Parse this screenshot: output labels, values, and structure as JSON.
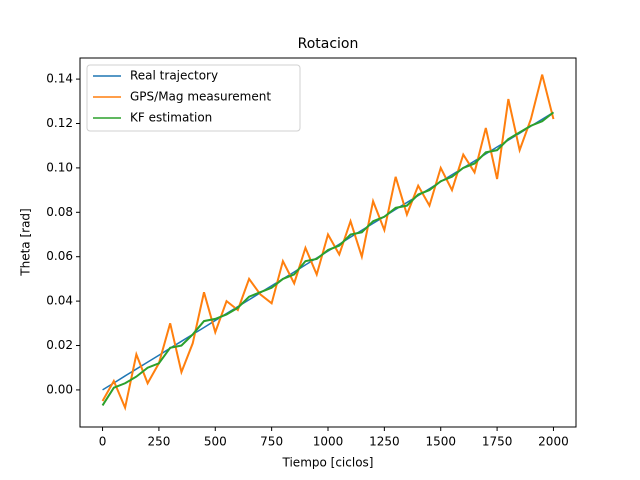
{
  "chart_data": {
    "type": "line",
    "title": "Rotacion",
    "xlabel": "Tiempo [ciclos]",
    "ylabel": "Theta [rad]",
    "x": [
      0,
      50,
      100,
      150,
      200,
      250,
      300,
      350,
      400,
      450,
      500,
      550,
      600,
      650,
      700,
      750,
      800,
      850,
      900,
      950,
      1000,
      1050,
      1100,
      1150,
      1200,
      1250,
      1300,
      1350,
      1400,
      1450,
      1500,
      1550,
      1600,
      1650,
      1700,
      1750,
      1800,
      1850,
      1900,
      1950,
      2000
    ],
    "series": [
      {
        "name": "Real trajectory",
        "color": "#1f77b4",
        "values": [
          0,
          0.0031,
          0.0063,
          0.0094,
          0.0125,
          0.0156,
          0.0188,
          0.0219,
          0.025,
          0.0281,
          0.0313,
          0.0344,
          0.0375,
          0.0406,
          0.0438,
          0.0469,
          0.05,
          0.0531,
          0.0563,
          0.0594,
          0.0625,
          0.0656,
          0.0688,
          0.0719,
          0.075,
          0.0781,
          0.0813,
          0.0844,
          0.0875,
          0.0906,
          0.0938,
          0.0969,
          0.1,
          0.1031,
          0.1063,
          0.1094,
          0.1125,
          0.1156,
          0.1188,
          0.1219,
          0.125
        ]
      },
      {
        "name": "GPS/Mag measurement",
        "color": "#ff7f0e",
        "values": [
          -0.005,
          0.004,
          -0.008,
          0.016,
          0.003,
          0.012,
          0.03,
          0.008,
          0.021,
          0.044,
          0.026,
          0.04,
          0.036,
          0.05,
          0.043,
          0.039,
          0.058,
          0.048,
          0.064,
          0.052,
          0.07,
          0.061,
          0.076,
          0.06,
          0.085,
          0.072,
          0.096,
          0.079,
          0.092,
          0.083,
          0.1,
          0.09,
          0.106,
          0.098,
          0.118,
          0.095,
          0.131,
          0.108,
          0.122,
          0.142,
          0.122
        ]
      },
      {
        "name": "KF estimation",
        "color": "#2ca02c",
        "values": [
          -0.007,
          0.001,
          0.003,
          0.006,
          0.01,
          0.012,
          0.019,
          0.02,
          0.025,
          0.031,
          0.032,
          0.034,
          0.037,
          0.042,
          0.044,
          0.046,
          0.05,
          0.052,
          0.058,
          0.059,
          0.063,
          0.065,
          0.07,
          0.071,
          0.076,
          0.078,
          0.082,
          0.083,
          0.088,
          0.09,
          0.094,
          0.096,
          0.1,
          0.102,
          0.107,
          0.108,
          0.113,
          0.116,
          0.119,
          0.121,
          0.125
        ]
      }
    ],
    "xlim": [
      -100,
      2100
    ],
    "xticks": [
      0,
      250,
      500,
      750,
      1000,
      1250,
      1500,
      1750,
      2000
    ],
    "ylim": [
      -0.0167,
      0.1495
    ],
    "yticks": [
      {
        "value": 0,
        "label": "0.00"
      },
      0.02,
      0.04,
      0.06,
      0.08,
      {
        "value": 0.1,
        "label": "0.10"
      },
      0.12,
      0.14
    ],
    "legend": "upper left"
  }
}
